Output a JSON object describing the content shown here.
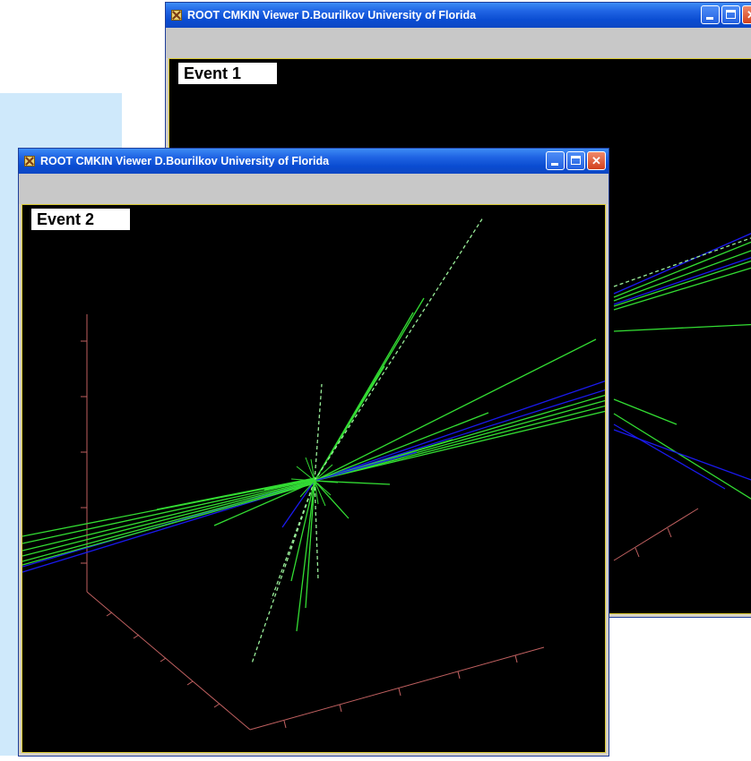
{
  "windows": [
    {
      "id": "event1",
      "title": "ROOT CMKIN Viewer  D.Bourilkov  University of Florida",
      "event_label": "Event 1",
      "icons": [
        "app-icon",
        "minimize-icon",
        "maximize-icon",
        "close-icon"
      ]
    },
    {
      "id": "event2",
      "title": "ROOT CMKIN Viewer  D.Bourilkov  University of Florida",
      "event_label": "Event 2",
      "icons": [
        "app-icon",
        "minimize-icon",
        "maximize-icon",
        "close-icon"
      ]
    }
  ],
  "colors": {
    "canvas": "#000000",
    "axis": "#c06060",
    "track_green": "#33dd33",
    "track_blue": "#1a1aee",
    "track_dashed": "#99ee99",
    "canvas_border": "#d8c830",
    "background_panel": "#cfe9fb"
  }
}
